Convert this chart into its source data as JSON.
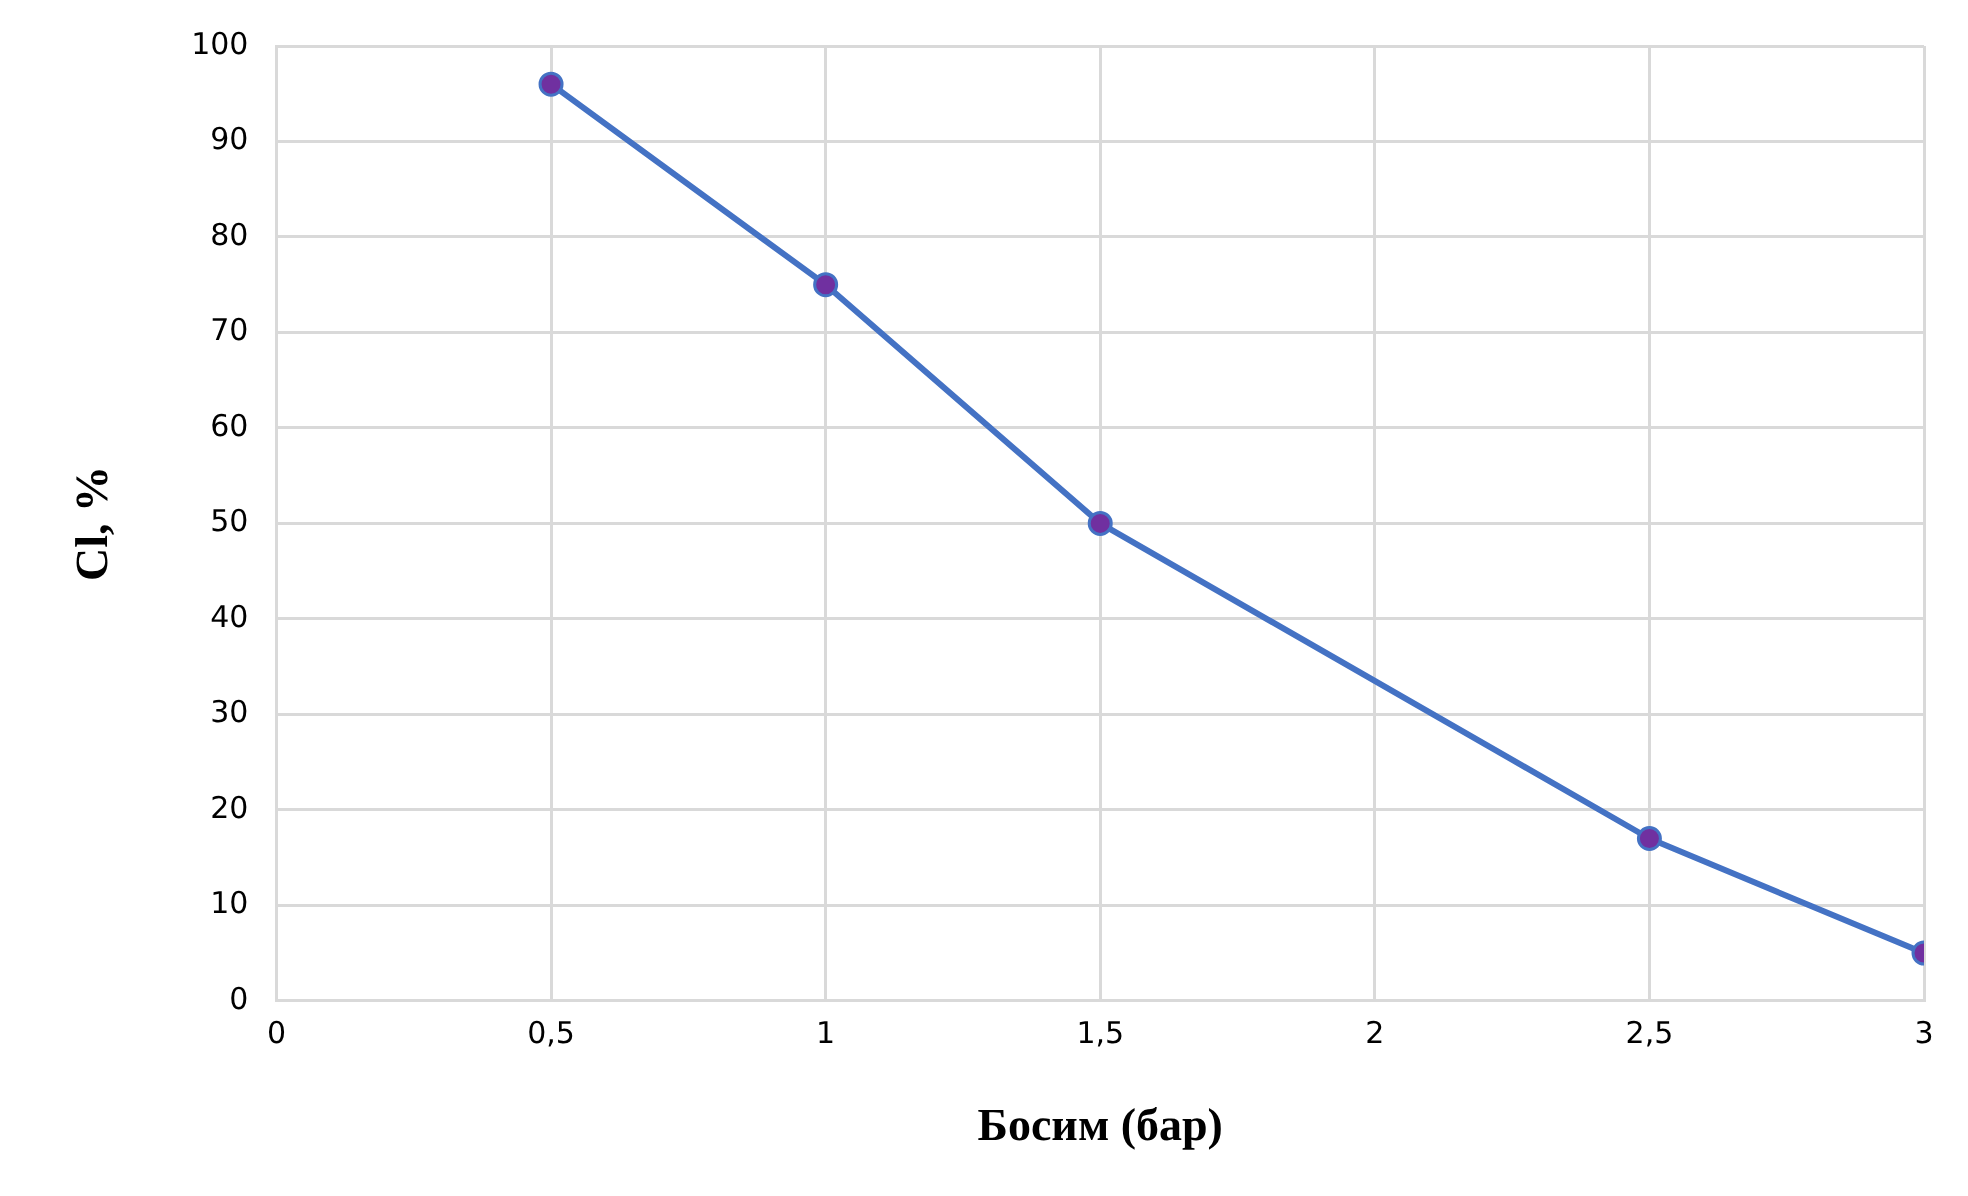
{
  "chart_data": {
    "type": "line",
    "xlabel": "Босим (бар)",
    "ylabel": "Cl, %",
    "x": [
      0.5,
      1,
      1.5,
      2.5,
      3
    ],
    "series": [
      {
        "color": "#4472c4",
        "values": [
          96,
          75,
          50,
          17,
          5
        ]
      }
    ],
    "xlim": [
      0,
      3
    ],
    "xticks": [
      0,
      {
        "value": 0.5,
        "label": "0,5"
      },
      1,
      {
        "value": 1.5,
        "label": "1,5"
      },
      2,
      {
        "value": 2.5,
        "label": "2,5"
      },
      3
    ],
    "ylim": [
      0,
      100
    ],
    "yticks": [
      0,
      10,
      20,
      30,
      40,
      50,
      60,
      70,
      80,
      90,
      100
    ],
    "grid": true,
    "legend": false,
    "marker": "circle",
    "line_style": "solid"
  }
}
